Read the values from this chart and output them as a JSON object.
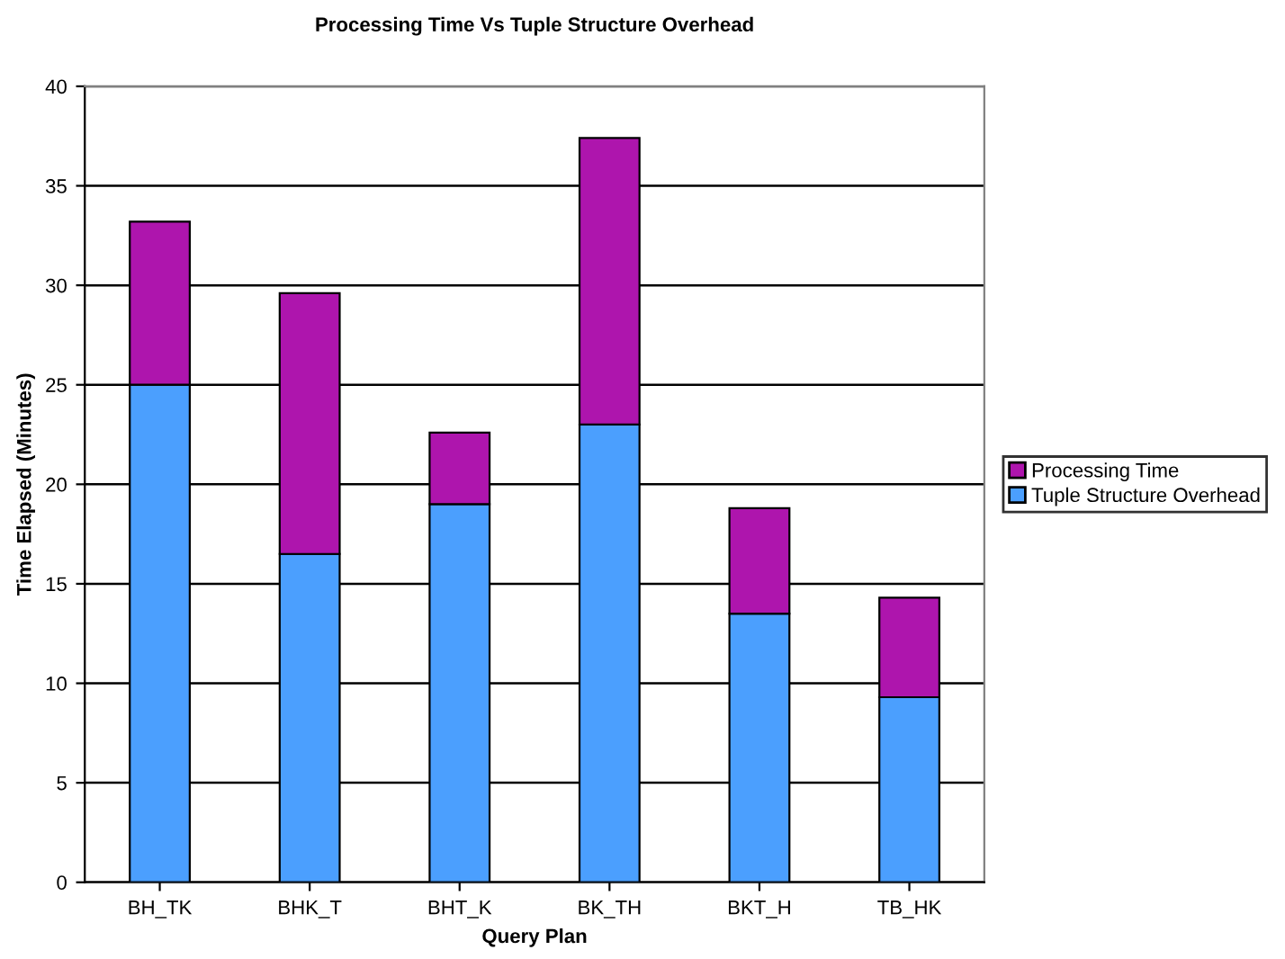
{
  "chart_data": {
    "type": "bar",
    "title": "Processing Time Vs Tuple Structure Overhead",
    "xlabel": "Query Plan",
    "ylabel": "Time Elapsed (Minutes)",
    "categories": [
      "BH_TK",
      "BHK_T",
      "BHT_K",
      "BK_TH",
      "BKT_H",
      "TB_HK"
    ],
    "stacked": true,
    "series": [
      {
        "name": "Tuple Structure Overhead",
        "color": "#4b9ffe",
        "values": [
          25.0,
          16.5,
          19.0,
          23.0,
          13.5,
          9.3
        ]
      },
      {
        "name": "Processing Time",
        "color": "#ae15ad",
        "values": [
          8.2,
          13.1,
          3.6,
          14.4,
          5.3,
          5.0
        ]
      }
    ],
    "ylim": [
      0,
      40
    ],
    "yticks": [
      0,
      5,
      10,
      15,
      20,
      25,
      30,
      35,
      40
    ],
    "grid": "y",
    "legend": "right"
  }
}
